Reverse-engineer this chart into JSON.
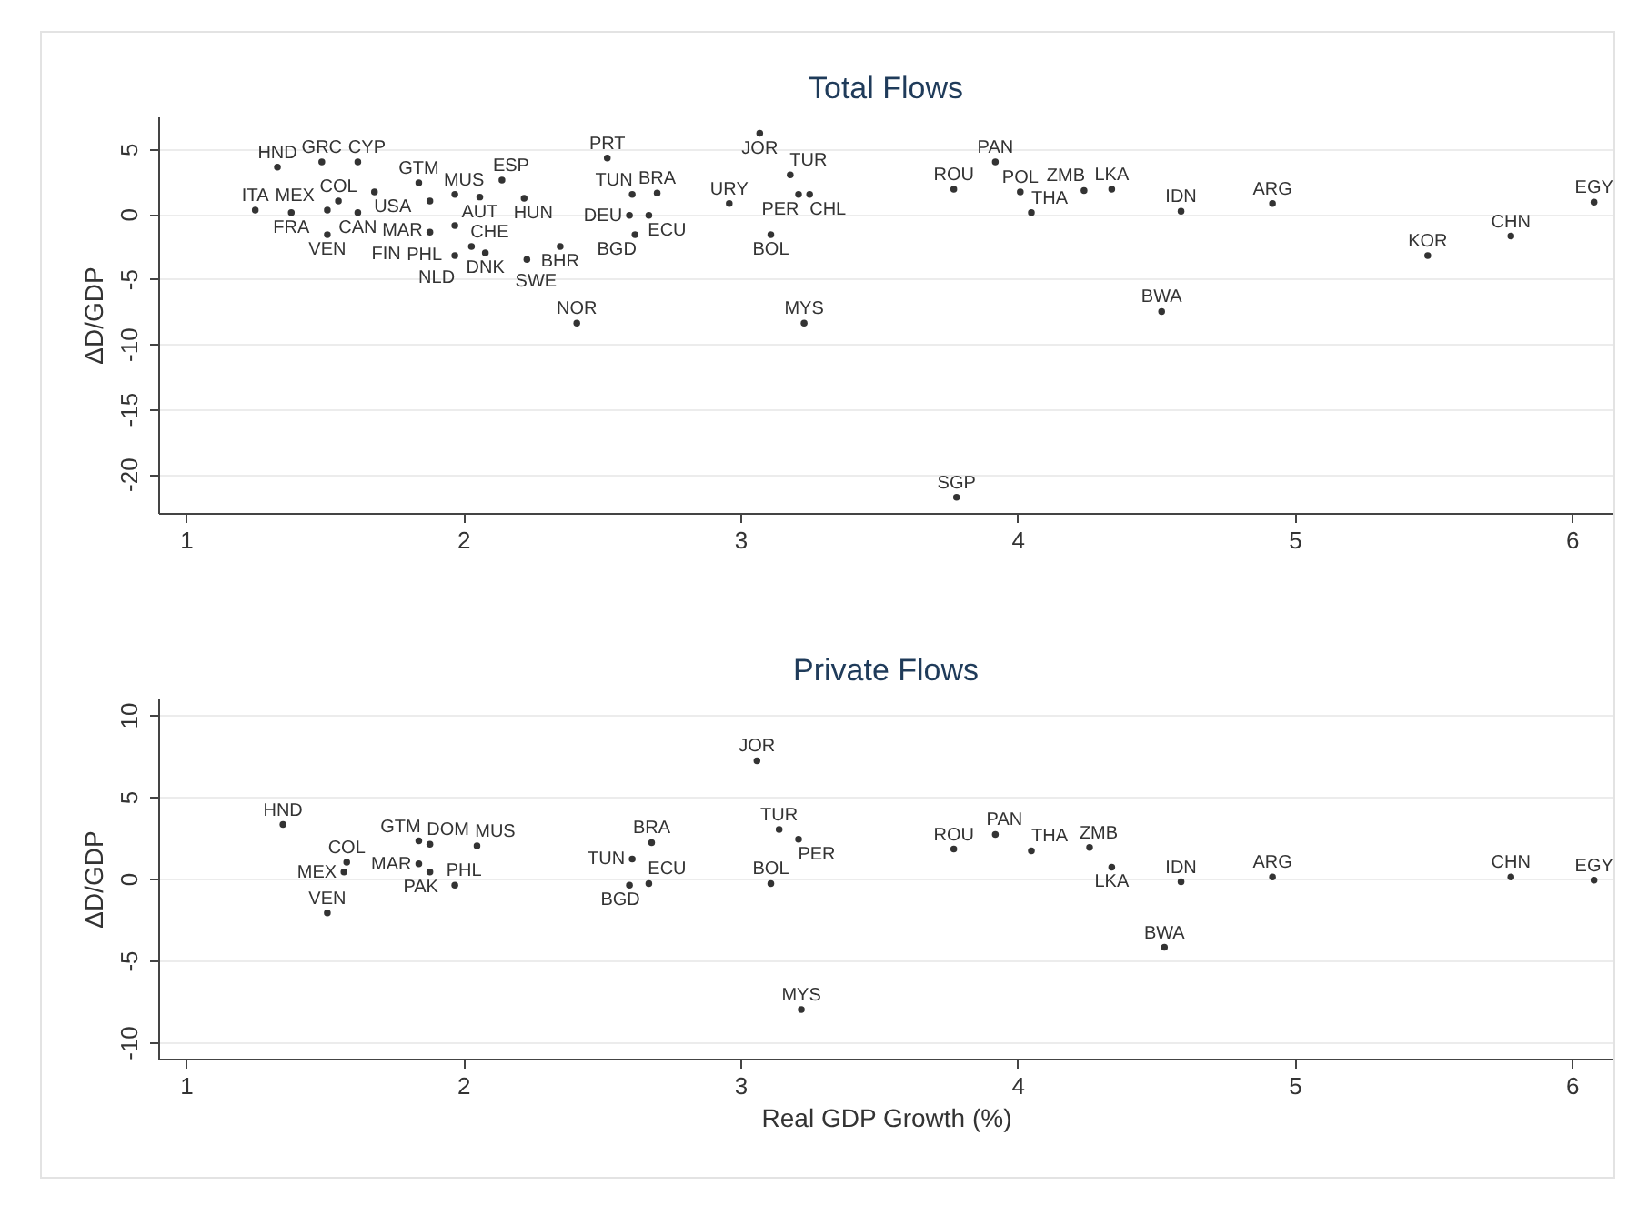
{
  "chart_data": [
    {
      "type": "scatter",
      "title": "Total Flows",
      "ylabel": "ΔD/GDP",
      "xlim": [
        0.9,
        6.15
      ],
      "xticks": [
        1,
        2,
        3,
        4,
        5,
        6
      ],
      "ylim": [
        -23,
        7.5
      ],
      "yticks": [
        -20,
        -15,
        -10,
        -5,
        0,
        5
      ],
      "grid": "y",
      "marker": "circle",
      "series": [
        {
          "color": "#333333",
          "x": [
            1.33,
            1.49,
            1.62,
            1.25,
            1.38,
            1.51,
            1.55,
            1.62,
            1.68,
            1.51,
            1.84,
            1.88,
            1.97,
            2.06,
            2.14,
            2.22,
            1.97,
            1.88,
            2.03,
            1.97,
            2.08,
            2.23,
            2.35,
            2.41,
            2.52,
            2.61,
            2.7,
            2.6,
            2.67,
            2.62,
            2.96,
            3.11,
            3.18,
            3.21,
            3.25,
            3.07,
            3.23,
            3.78,
            3.77,
            3.92,
            4.01,
            4.05,
            4.24,
            4.34,
            4.59,
            4.92,
            4.52,
            5.48,
            5.78,
            6.08
          ],
          "values": [
            3.6,
            4.0,
            4.0,
            0.3,
            0.1,
            0.3,
            1.0,
            0.1,
            1.7,
            -1.6,
            2.4,
            1.0,
            1.5,
            1.3,
            2.6,
            1.2,
            -0.9,
            -1.4,
            -2.5,
            -3.2,
            -3.0,
            -3.5,
            -2.5,
            -8.4,
            4.3,
            1.5,
            1.6,
            -0.1,
            -0.1,
            -1.6,
            0.8,
            -1.6,
            3.0,
            1.5,
            1.5,
            6.2,
            -8.4,
            -21.8,
            1.9,
            4.0,
            1.7,
            0.1,
            1.8,
            1.9,
            0.2,
            0.8,
            -7.5,
            -3.2,
            -1.7,
            0.9
          ],
          "value_labels": [
            "HND",
            "GRC",
            "CYP",
            "ITA",
            "FRA",
            "MEX",
            "COL",
            "CAN",
            "USA",
            "VEN",
            "GTM",
            "MAR",
            "MUS",
            "AUT",
            "ESP",
            "HUN",
            "PHL",
            "FIN",
            "CHE",
            "NLD",
            "DNK",
            "SWE",
            "BHR",
            "NOR",
            "PRT",
            "TUN",
            "BRA",
            "DEU",
            "ECU",
            "BGD",
            "URY",
            "BOL",
            "TUR",
            "PER",
            "CHL",
            "JOR",
            "MYS",
            "SGP",
            "ROU",
            "PAN",
            "POL",
            "THA",
            "ZMB",
            "LKA",
            "IDN",
            "ARG",
            "BWA",
            "KOR",
            "CHN",
            "EGY"
          ]
        }
      ]
    },
    {
      "type": "scatter",
      "title": "Private Flows",
      "xlabel": "Real GDP Growth (%)",
      "ylabel": "ΔD/GDP",
      "xlim": [
        0.9,
        6.15
      ],
      "xticks": [
        1,
        2,
        3,
        4,
        5,
        6
      ],
      "ylim": [
        -11,
        11
      ],
      "yticks": [
        -10,
        -5,
        0,
        5,
        10
      ],
      "grid": "y",
      "marker": "circle",
      "series": [
        {
          "color": "#333333",
          "x": [
            1.35,
            1.58,
            1.57,
            1.51,
            1.84,
            1.88,
            2.05,
            1.84,
            1.88,
            1.97,
            2.68,
            2.61,
            2.6,
            2.67,
            3.06,
            3.14,
            3.21,
            3.11,
            3.22,
            3.77,
            3.92,
            4.05,
            4.26,
            4.34,
            4.59,
            4.92,
            5.78,
            6.08,
            4.53
          ],
          "values": [
            3.3,
            1.0,
            0.4,
            -2.1,
            2.3,
            2.1,
            2.0,
            0.9,
            0.4,
            -0.4,
            2.2,
            1.2,
            -0.4,
            -0.3,
            7.2,
            3.0,
            2.4,
            -0.3,
            -8.0,
            1.8,
            2.7,
            1.7,
            1.9,
            0.7,
            -0.2,
            0.1,
            0.1,
            -0.1,
            -4.2
          ],
          "value_labels": [
            "HND",
            "COL",
            "MEX",
            "VEN",
            "GTM",
            "DOM",
            "MUS",
            "MAR",
            "PAK",
            "PHL",
            "BRA",
            "TUN",
            "BGD",
            "ECU",
            "JOR",
            "TUR",
            "PER",
            "BOL",
            "MYS",
            "ROU",
            "PAN",
            "THA",
            "ZMB",
            "LKA",
            "IDN",
            "ARG",
            "CHN",
            "EGY",
            "BWA"
          ]
        }
      ]
    }
  ]
}
